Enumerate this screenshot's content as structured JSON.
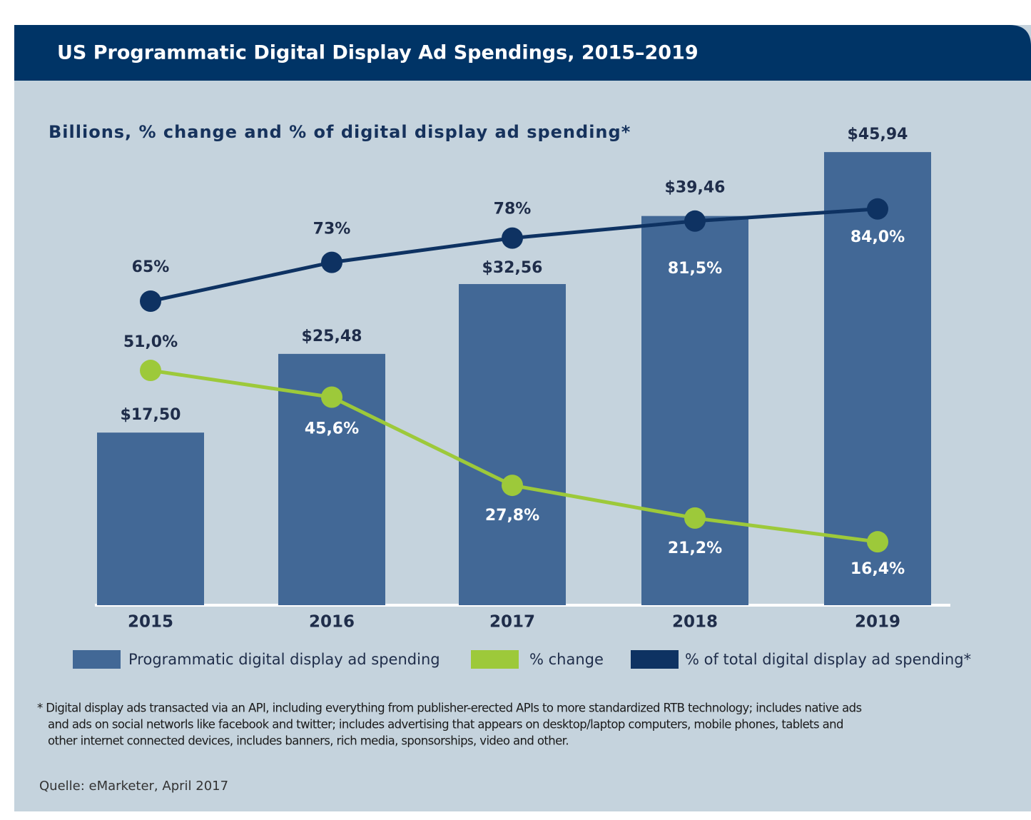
{
  "chart_data": {
    "type": "bar",
    "title": "US Programmatic Digital Display Ad Spendings, 2015–2019",
    "subtitle": "Billions, % change and % of digital display ad spending*",
    "categories": [
      "2015",
      "2016",
      "2017",
      "2018",
      "2019"
    ],
    "series": [
      {
        "name": "Programmatic digital display ad spending",
        "type": "bar",
        "color": "#426896",
        "values": [
          17.5,
          25.48,
          32.56,
          39.46,
          45.94
        ],
        "value_labels": [
          "$17,50",
          "$25,48",
          "$32,56",
          "$39,46",
          "$45,94"
        ]
      },
      {
        "name": "% change",
        "type": "line",
        "color": "#9dc93a",
        "values": [
          51.0,
          45.6,
          27.8,
          21.2,
          16.4
        ],
        "value_labels": [
          "51,0%",
          "45,6%",
          "27,8%",
          "21,2%",
          "16,4%"
        ]
      },
      {
        "name": "% of total digital display ad spending*",
        "type": "line",
        "color": "#0e3262",
        "values": [
          65,
          73,
          78,
          81.5,
          84
        ],
        "value_labels": [
          "65%",
          "73%",
          "78%",
          "81,5%",
          "84,0%"
        ]
      }
    ],
    "footnote": [
      "* Digital display ads transacted via an API, including everything from publisher-erected APIs to more standardized RTB technology; includes native ads",
      "and ads on social networls like facebook and twitter; includes advertising that appears on desktop/laptop computers, mobile phones, tablets and",
      "other internet connected devices, includes banners, rich media, sponsorships, video and other."
    ],
    "source": "Quelle: eMarketer, April 2017"
  }
}
